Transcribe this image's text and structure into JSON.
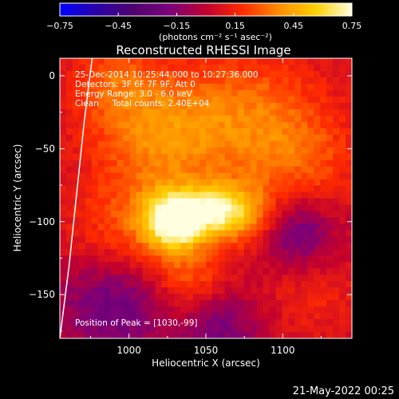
{
  "colors": {
    "background": "#000000",
    "foreground": "#ffffff",
    "colormap": [
      "#0000ff",
      "#2a00a8",
      "#50006e",
      "#7a007a",
      "#c00030",
      "#ff2a00",
      "#ff8c00",
      "#ffd000",
      "#ffffe0"
    ]
  },
  "colorbar": {
    "ticks": [
      "-0.75",
      "-0.45",
      "-0.15",
      "0.15",
      "0.45",
      "0.75"
    ],
    "range": [
      -0.75,
      0.75
    ],
    "units_label": "(photons cm⁻² s⁻¹ asec⁻²)"
  },
  "chart_data": {
    "type": "heatmap",
    "title": "Reconstructed RHESSI Image",
    "xlabel": "Heliocentric X (arcsec)",
    "ylabel": "Heliocentric Y (arcsec)",
    "xlim": [
      955,
      1145
    ],
    "ylim": [
      -180,
      12
    ],
    "xticks": [
      "1000",
      "1050",
      "1100"
    ],
    "yticks": [
      "0",
      "-50",
      "-100",
      "-150"
    ],
    "annotations": [
      "25-Dec-2014 10:25:44.000 to 10:27:36.000",
      "Detectors: 3F 6F 7F 9F, Att 0",
      "Energy Range: 3.0 - 6.0 keV",
      "Clean     Total counts: 2.40E+04"
    ],
    "peak_label": "Position of Peak = [1030,-99]",
    "peak": [
      1030,
      -99
    ],
    "limb": [
      [
        976,
        12
      ],
      [
        971,
        -30
      ],
      [
        966,
        -80
      ],
      [
        961,
        -130
      ],
      [
        955,
        -180
      ]
    ],
    "sources": [
      {
        "x": 1030,
        "y": -99,
        "amp": 0.75,
        "sigma": 14
      },
      {
        "x": 1055,
        "y": -92,
        "amp": 0.42,
        "sigma": 12
      },
      {
        "x": 1075,
        "y": -95,
        "amp": 0.36,
        "sigma": 14
      },
      {
        "x": 1020,
        "y": -40,
        "amp": 0.3,
        "sigma": 30
      },
      {
        "x": 1080,
        "y": -30,
        "amp": 0.26,
        "sigma": 32
      },
      {
        "x": 1000,
        "y": -110,
        "amp": 0.22,
        "sigma": 28
      },
      {
        "x": 1115,
        "y": -60,
        "amp": 0.16,
        "sigma": 26
      },
      {
        "x": 1040,
        "y": -140,
        "amp": 0.2,
        "sigma": 16
      },
      {
        "x": 990,
        "y": -5,
        "amp": 0.18,
        "sigma": 20
      },
      {
        "x": 1120,
        "y": -150,
        "amp": 0.1,
        "sigma": 22
      }
    ],
    "negative_regions": [
      {
        "x": 990,
        "y": -155,
        "amp": -0.32,
        "sigma": 26
      },
      {
        "x": 1110,
        "y": -108,
        "amp": -0.28,
        "sigma": 18
      },
      {
        "x": 1060,
        "y": -172,
        "amp": -0.24,
        "sigma": 18
      }
    ]
  },
  "footer": {
    "date": "21-May-2022 00:25"
  }
}
